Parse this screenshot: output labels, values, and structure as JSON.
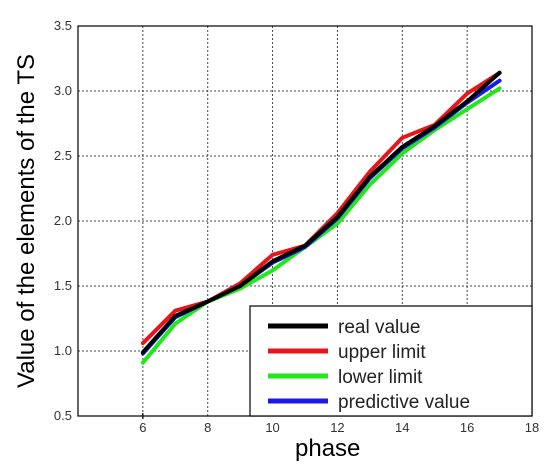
{
  "chart_data": {
    "type": "line",
    "title": "",
    "xlabel": "phase",
    "ylabel": "Value of the elements of the TS",
    "xlim": [
      4,
      18
    ],
    "ylim": [
      0.5,
      3.5
    ],
    "xticks": [
      "",
      "6",
      "8",
      "10",
      "12",
      "14",
      "16",
      "18"
    ],
    "xtick_values": [
      4,
      6,
      8,
      10,
      12,
      14,
      16,
      18
    ],
    "yticks": [
      "0.5",
      "1.0",
      "1.5",
      "2.0",
      "2.5",
      "3.0",
      "3.5"
    ],
    "ytick_values": [
      0.5,
      1.0,
      1.5,
      2.0,
      2.5,
      3.0,
      3.5
    ],
    "grid": true,
    "legend_position": "bottom-right",
    "x": [
      6,
      7,
      8,
      9,
      10,
      11,
      12,
      13,
      14,
      15,
      16,
      17
    ],
    "series": [
      {
        "name": "upper limit",
        "color": "#e8151b",
        "values": [
          1.06,
          1.31,
          1.38,
          1.52,
          1.74,
          1.81,
          2.06,
          2.38,
          2.64,
          2.74,
          2.98,
          3.14
        ]
      },
      {
        "name": "lower limit",
        "color": "#22e81b",
        "values": [
          0.91,
          1.21,
          1.38,
          1.48,
          1.62,
          1.8,
          1.98,
          2.28,
          2.52,
          2.7,
          2.86,
          3.02
        ]
      },
      {
        "name": "predictive value",
        "color": "#1a1ae8",
        "values": [
          0.98,
          1.26,
          1.38,
          1.5,
          1.68,
          1.8,
          2.02,
          2.33,
          2.56,
          2.72,
          2.91,
          3.08
        ]
      },
      {
        "name": "real value",
        "color": "#000000",
        "values": [
          0.99,
          1.27,
          1.38,
          1.5,
          1.69,
          1.81,
          2.03,
          2.34,
          2.57,
          2.73,
          2.92,
          3.14
        ]
      }
    ],
    "legend_order": [
      "real value",
      "upper limit",
      "lower limit",
      "predictive value"
    ]
  }
}
